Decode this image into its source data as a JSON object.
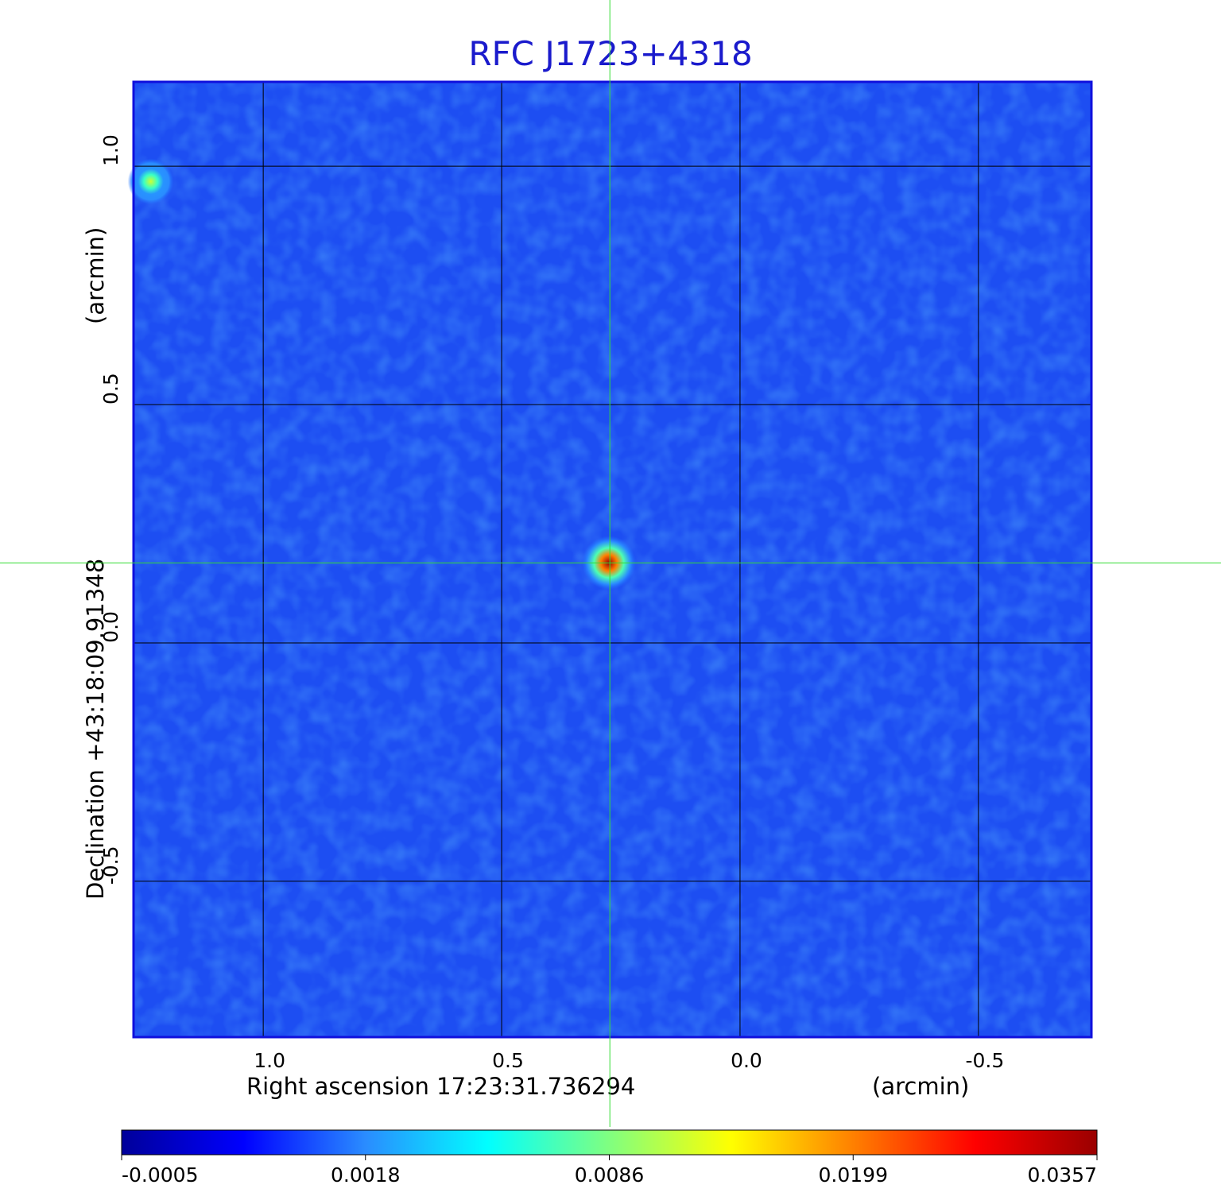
{
  "chart_data": {
    "type": "heatmap",
    "title": "RFC J1723+4318",
    "x_label": "Right ascension  17:23:31.736294",
    "x_unit": "(arcmin)",
    "y_label": "Declination  +43:18:09.91348",
    "y_unit": "(arcmin)",
    "xlim": [
      1.272,
      -0.737
    ],
    "ylim": [
      -0.827,
      1.177
    ],
    "xticks": [
      {
        "value": 1,
        "label": "1.0"
      },
      {
        "value": 0.5,
        "label": "0.5"
      },
      {
        "value": 0,
        "label": "0.0"
      },
      {
        "value": -0.5,
        "label": "-0.5"
      }
    ],
    "yticks": [
      {
        "value": 1,
        "label": "1.0"
      },
      {
        "value": 0.5,
        "label": "0.5"
      },
      {
        "value": 0,
        "label": "0.0"
      },
      {
        "value": -0.5,
        "label": "-0.5"
      }
    ],
    "grid": true,
    "background_color": "#1d4ef2",
    "crosshair": {
      "x": 0.273,
      "y": 0.168,
      "color": "#33dd33"
    },
    "sources": [
      {
        "x": 0.275,
        "y": 0.168,
        "peak": 0.0357
      },
      {
        "x": 1.236,
        "y": 0.968,
        "peak": 0.012
      }
    ],
    "colorbar": {
      "ticks": [
        -0.0005,
        0.0018,
        0.0086,
        0.0199,
        0.0357
      ],
      "colors": [
        "#00009a",
        "#0000ff",
        "#2a8cff",
        "#00ffff",
        "#80ff80",
        "#ffff00",
        "#ff8000",
        "#ff0000",
        "#9a0000"
      ]
    }
  }
}
